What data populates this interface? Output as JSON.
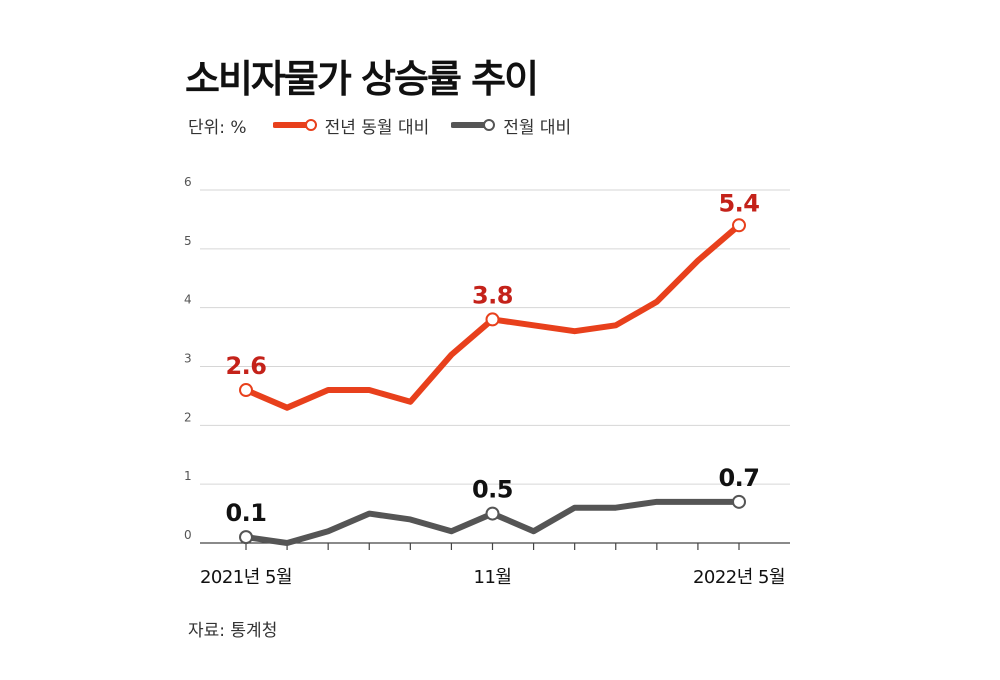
{
  "title": "소비자물가 상승률 추이",
  "unit_label": "단위: %",
  "source": "자료: 통계청",
  "chart_data": {
    "type": "line",
    "x": [
      "2021-05",
      "2021-06",
      "2021-07",
      "2021-08",
      "2021-09",
      "2021-10",
      "2021-11",
      "2021-12",
      "2022-01",
      "2022-02",
      "2022-03",
      "2022-04",
      "2022-05"
    ],
    "x_tick_labels": [
      {
        "index": 0,
        "label": "2021년 5월"
      },
      {
        "index": 6,
        "label": "11월"
      },
      {
        "index": 12,
        "label": "2022년 5월"
      }
    ],
    "ylim": [
      0,
      6
    ],
    "yticks": [
      0,
      1,
      2,
      3,
      4,
      5,
      6
    ],
    "grid": true,
    "legend_position": "top-left",
    "series": [
      {
        "name": "전년 동월 대비",
        "color": "#e8401c",
        "label_color": "#c4221a",
        "values": [
          2.6,
          2.3,
          2.6,
          2.6,
          2.4,
          3.2,
          3.8,
          3.7,
          3.6,
          3.7,
          4.1,
          4.8,
          5.4
        ],
        "labels": [
          {
            "index": 0,
            "text": "2.6"
          },
          {
            "index": 6,
            "text": "3.8"
          },
          {
            "index": 12,
            "text": "5.4"
          }
        ]
      },
      {
        "name": "전월 대비",
        "color": "#555555",
        "label_color": "#111111",
        "values": [
          0.1,
          0.0,
          0.2,
          0.5,
          0.4,
          0.2,
          0.5,
          0.2,
          0.6,
          0.6,
          0.7,
          0.7,
          0.7
        ],
        "labels": [
          {
            "index": 0,
            "text": "0.1"
          },
          {
            "index": 6,
            "text": "0.5"
          },
          {
            "index": 12,
            "text": "0.7"
          }
        ]
      }
    ]
  }
}
